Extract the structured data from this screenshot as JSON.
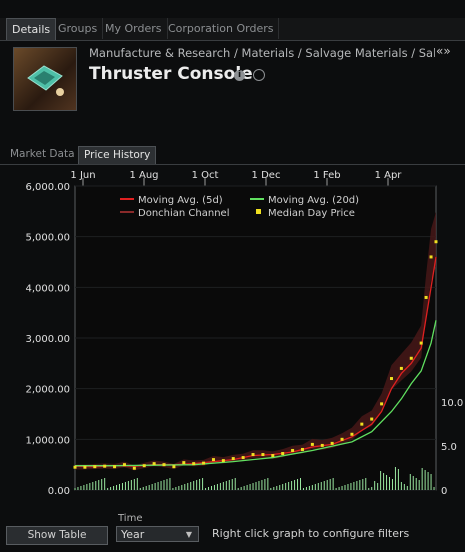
{
  "top_tabs": [
    "Details",
    "Groups",
    "My Orders",
    "Corporation Orders"
  ],
  "breadcrumb": "Manufacture & Research / Materials / Salvage Materials / Salvaged",
  "nav_arrows": "«»",
  "item_title": "Thruster Console",
  "info_icon": "i",
  "sub_tabs": [
    "Market Data",
    "Price History"
  ],
  "legend": {
    "ma5": "Moving Avg. (5d)",
    "ma20": "Moving Avg. (20d)",
    "donchian": "Donchian Channel",
    "median": "Median Day Price"
  },
  "show_table_label": "Show Table",
  "time_label": "Time",
  "time_value": "Year",
  "hint_text": "Right click graph to configure filters",
  "chart_data": {
    "type": "line",
    "x_ticks": [
      "1 Jun",
      "1 Aug",
      "1 Oct",
      "1 Dec",
      "1 Feb",
      "1 Apr"
    ],
    "y_ticks": [
      "6,000.00",
      "5,000.00",
      "4,000.00",
      "3,000.00",
      "2,000.00",
      "1,000.00",
      "0.00"
    ],
    "volume_ticks": [
      "10.0",
      "5.0",
      "0"
    ],
    "ylim": [
      0,
      6000
    ],
    "series": [
      {
        "name": "Median Day Price",
        "color": "#f0e020",
        "x": [
          0,
          10,
          20,
          30,
          40,
          50,
          60,
          70,
          80,
          90,
          100,
          110,
          120,
          130,
          140,
          150,
          160,
          170,
          180,
          190,
          200,
          210,
          220,
          230,
          240,
          250,
          260,
          270,
          280,
          290,
          300,
          310,
          320,
          330,
          340,
          350,
          355,
          360,
          365
        ],
        "values": [
          450,
          450,
          460,
          470,
          460,
          500,
          430,
          480,
          520,
          500,
          460,
          540,
          520,
          530,
          600,
          580,
          620,
          640,
          700,
          700,
          680,
          720,
          780,
          800,
          900,
          880,
          920,
          1000,
          1100,
          1300,
          1400,
          1700,
          2200,
          2400,
          2600,
          2900,
          3800,
          4600,
          4900
        ]
      },
      {
        "name": "Moving Avg. (5d)",
        "color": "#e02020",
        "x": [
          0,
          20,
          40,
          60,
          80,
          100,
          120,
          140,
          160,
          180,
          200,
          220,
          240,
          260,
          280,
          300,
          310,
          320,
          330,
          340,
          350,
          355,
          360,
          365
        ],
        "values": [
          470,
          460,
          480,
          470,
          500,
          500,
          520,
          560,
          600,
          680,
          700,
          750,
          850,
          900,
          1050,
          1300,
          1550,
          2000,
          2300,
          2500,
          2800,
          3400,
          4000,
          4600
        ]
      },
      {
        "name": "Moving Avg. (20d)",
        "color": "#60e060",
        "x": [
          0,
          40,
          80,
          120,
          160,
          200,
          240,
          280,
          300,
          320,
          330,
          340,
          350,
          360,
          365
        ],
        "values": [
          480,
          480,
          490,
          500,
          560,
          640,
          780,
          950,
          1150,
          1550,
          1800,
          2100,
          2350,
          2900,
          3350
        ]
      }
    ]
  }
}
